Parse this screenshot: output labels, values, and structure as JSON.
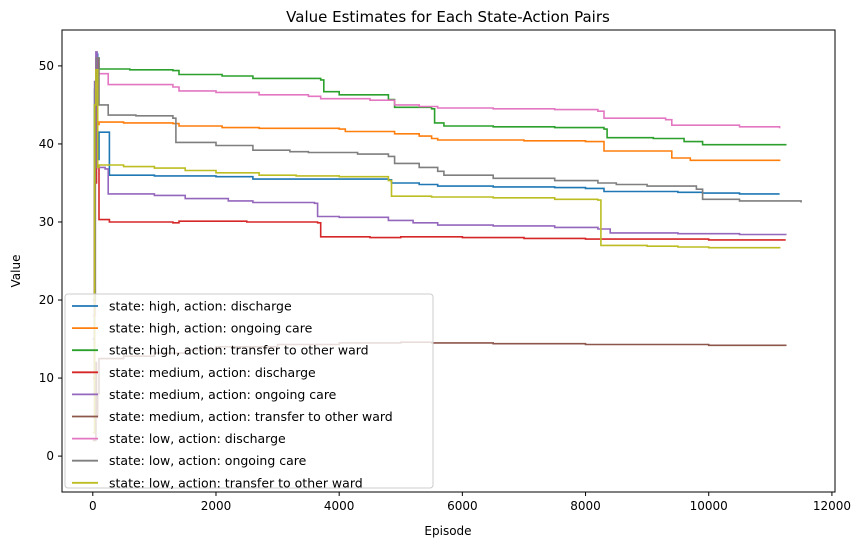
{
  "chart_data": {
    "type": "line",
    "title": "Value Estimates for Each State-Action Pairs",
    "xlabel": "Episode",
    "ylabel": "Value",
    "xlim": [
      -500,
      12050
    ],
    "ylim": [
      -4.6,
      54.6
    ],
    "xticks": [
      0,
      2000,
      4000,
      6000,
      8000,
      10000,
      12000
    ],
    "yticks": [
      0,
      10,
      20,
      30,
      40,
      50
    ],
    "grid": false,
    "legend_position": "lower-left",
    "series": [
      {
        "name": "state: high,  action: discharge",
        "color": "#1f77b4",
        "points": [
          [
            0,
            15
          ],
          [
            30,
            45
          ],
          [
            60,
            51.5
          ],
          [
            80,
            38
          ],
          [
            100,
            41.5
          ],
          [
            270,
            41.5
          ],
          [
            270,
            36
          ],
          [
            1000,
            35.9
          ],
          [
            2000,
            35.8
          ],
          [
            2600,
            35.5
          ],
          [
            3500,
            35.5
          ],
          [
            4800,
            35.4
          ],
          [
            4850,
            35
          ],
          [
            5300,
            34.8
          ],
          [
            5600,
            34.6
          ],
          [
            6500,
            34.5
          ],
          [
            7500,
            34.4
          ],
          [
            8000,
            34.3
          ],
          [
            8300,
            33.9
          ],
          [
            9500,
            33.8
          ],
          [
            9900,
            33.7
          ],
          [
            10500,
            33.6
          ],
          [
            11150,
            33.6
          ]
        ]
      },
      {
        "name": "state: high,  action: ongoing care",
        "color": "#ff7f0e",
        "points": [
          [
            0,
            10
          ],
          [
            30,
            40
          ],
          [
            50,
            51
          ],
          [
            80,
            42.5
          ],
          [
            100,
            42.8
          ],
          [
            500,
            42.7
          ],
          [
            1300,
            42.6
          ],
          [
            1400,
            42.3
          ],
          [
            2100,
            42.1
          ],
          [
            2700,
            42
          ],
          [
            4000,
            41.9
          ],
          [
            4100,
            41.6
          ],
          [
            4900,
            41.3
          ],
          [
            5300,
            41
          ],
          [
            5500,
            40.7
          ],
          [
            5600,
            40.5
          ],
          [
            7000,
            40.4
          ],
          [
            8000,
            40.3
          ],
          [
            8300,
            39.1
          ],
          [
            9300,
            39.1
          ],
          [
            9400,
            38.2
          ],
          [
            9700,
            37.9
          ],
          [
            11150,
            37.8
          ]
        ]
      },
      {
        "name": "state: high,  action: transfer to other ward",
        "color": "#2ca02c",
        "points": [
          [
            0,
            8
          ],
          [
            30,
            47
          ],
          [
            60,
            51
          ],
          [
            100,
            49.6
          ],
          [
            600,
            49.5
          ],
          [
            1300,
            49.4
          ],
          [
            1400,
            48.9
          ],
          [
            2100,
            48.7
          ],
          [
            2600,
            48.4
          ],
          [
            3700,
            48.2
          ],
          [
            3750,
            46.7
          ],
          [
            4000,
            46.3
          ],
          [
            4800,
            45.7
          ],
          [
            4900,
            44.7
          ],
          [
            5500,
            44.5
          ],
          [
            5550,
            42.7
          ],
          [
            5700,
            42.3
          ],
          [
            6500,
            42.2
          ],
          [
            7500,
            42.1
          ],
          [
            8300,
            41.9
          ],
          [
            8350,
            40.8
          ],
          [
            9100,
            40.7
          ],
          [
            9600,
            40.3
          ],
          [
            9900,
            39.9
          ],
          [
            11250,
            39.8
          ]
        ]
      },
      {
        "name": "state: medium,  action: discharge",
        "color": "#d62728",
        "points": [
          [
            0,
            5
          ],
          [
            30,
            35
          ],
          [
            60,
            51
          ],
          [
            80,
            37
          ],
          [
            100,
            30.3
          ],
          [
            250,
            30.3
          ],
          [
            270,
            30
          ],
          [
            1300,
            29.9
          ],
          [
            1400,
            30.1
          ],
          [
            2500,
            30
          ],
          [
            3650,
            29.9
          ],
          [
            3700,
            28.1
          ],
          [
            4500,
            28
          ],
          [
            5000,
            28.1
          ],
          [
            6000,
            28
          ],
          [
            7000,
            27.9
          ],
          [
            8000,
            27.8
          ],
          [
            9000,
            27.8
          ],
          [
            10000,
            27.7
          ],
          [
            11250,
            27.7
          ]
        ]
      },
      {
        "name": "state: medium,  action: ongoing care",
        "color": "#9467bd",
        "points": [
          [
            0,
            15
          ],
          [
            30,
            48
          ],
          [
            50,
            51.8
          ],
          [
            70,
            37
          ],
          [
            200,
            36.8
          ],
          [
            250,
            33.6
          ],
          [
            1000,
            33.4
          ],
          [
            1500,
            33
          ],
          [
            2200,
            32.7
          ],
          [
            2600,
            32.5
          ],
          [
            3600,
            32.4
          ],
          [
            3650,
            30.7
          ],
          [
            4000,
            30.6
          ],
          [
            4800,
            30.2
          ],
          [
            5200,
            29.9
          ],
          [
            5600,
            29.6
          ],
          [
            6500,
            29.5
          ],
          [
            7500,
            29.3
          ],
          [
            8200,
            29.1
          ],
          [
            8400,
            28.6
          ],
          [
            9500,
            28.5
          ],
          [
            10500,
            28.4
          ],
          [
            11250,
            28.3
          ]
        ]
      },
      {
        "name": "state: medium,  action: transfer to other ward",
        "color": "#8c564b",
        "points": [
          [
            0,
            2
          ],
          [
            50,
            12
          ],
          [
            60,
            5
          ],
          [
            80,
            8
          ],
          [
            100,
            12.5
          ],
          [
            500,
            12.8
          ],
          [
            1000,
            13.2
          ],
          [
            1500,
            13.6
          ],
          [
            2000,
            14
          ],
          [
            3000,
            14.3
          ],
          [
            4000,
            14.5
          ],
          [
            5000,
            14.6
          ],
          [
            5500,
            14.5
          ],
          [
            6500,
            14.4
          ],
          [
            8000,
            14.3
          ],
          [
            9000,
            14.3
          ],
          [
            9900,
            14.3
          ],
          [
            10000,
            14.2
          ],
          [
            11250,
            14.1
          ]
        ]
      },
      {
        "name": "state: low,  action: discharge",
        "color": "#e377c2",
        "points": [
          [
            0,
            18
          ],
          [
            40,
            47
          ],
          [
            60,
            49
          ],
          [
            150,
            49
          ],
          [
            250,
            47.6
          ],
          [
            1300,
            47.3
          ],
          [
            1400,
            46.8
          ],
          [
            2000,
            46.6
          ],
          [
            2700,
            46.3
          ],
          [
            3500,
            46.1
          ],
          [
            3700,
            45.8
          ],
          [
            4500,
            45.6
          ],
          [
            4900,
            45
          ],
          [
            5300,
            44.8
          ],
          [
            5600,
            44.6
          ],
          [
            6500,
            44.5
          ],
          [
            7500,
            44.4
          ],
          [
            8200,
            44.2
          ],
          [
            8300,
            43.3
          ],
          [
            9300,
            43.1
          ],
          [
            9400,
            42.4
          ],
          [
            10500,
            42.2
          ],
          [
            11150,
            42
          ]
        ]
      },
      {
        "name": "state: low,  action: ongoing care",
        "color": "#7f7f7f",
        "points": [
          [
            0,
            20
          ],
          [
            40,
            48
          ],
          [
            60,
            51
          ],
          [
            100,
            45
          ],
          [
            250,
            43.7
          ],
          [
            700,
            43.6
          ],
          [
            1300,
            43.3
          ],
          [
            1350,
            40.2
          ],
          [
            2000,
            39.8
          ],
          [
            2600,
            39.2
          ],
          [
            3200,
            39
          ],
          [
            3500,
            38.9
          ],
          [
            4300,
            38.7
          ],
          [
            4800,
            38.4
          ],
          [
            4900,
            37.5
          ],
          [
            5300,
            37
          ],
          [
            5600,
            36.5
          ],
          [
            5700,
            36
          ],
          [
            6500,
            35.6
          ],
          [
            7500,
            35.3
          ],
          [
            8200,
            35
          ],
          [
            8500,
            34.8
          ],
          [
            9000,
            34.6
          ],
          [
            9800,
            34.2
          ],
          [
            9900,
            32.9
          ],
          [
            10500,
            32.7
          ],
          [
            11500,
            32.5
          ]
        ]
      },
      {
        "name": "state: low,  action: transfer to other ward",
        "color": "#bcbd22",
        "points": [
          [
            0,
            3
          ],
          [
            30,
            45
          ],
          [
            50,
            49.5
          ],
          [
            80,
            37
          ],
          [
            100,
            37.3
          ],
          [
            500,
            37.1
          ],
          [
            1000,
            36.9
          ],
          [
            1500,
            36.6
          ],
          [
            2000,
            36.3
          ],
          [
            2700,
            36
          ],
          [
            3300,
            35.9
          ],
          [
            4000,
            35.8
          ],
          [
            4800,
            35.3
          ],
          [
            4850,
            33.3
          ],
          [
            5500,
            33.2
          ],
          [
            6500,
            33.1
          ],
          [
            7500,
            32.9
          ],
          [
            8200,
            32.8
          ],
          [
            8250,
            27
          ],
          [
            9000,
            26.9
          ],
          [
            9500,
            26.8
          ],
          [
            10000,
            26.7
          ],
          [
            11150,
            26.6
          ]
        ]
      }
    ]
  }
}
